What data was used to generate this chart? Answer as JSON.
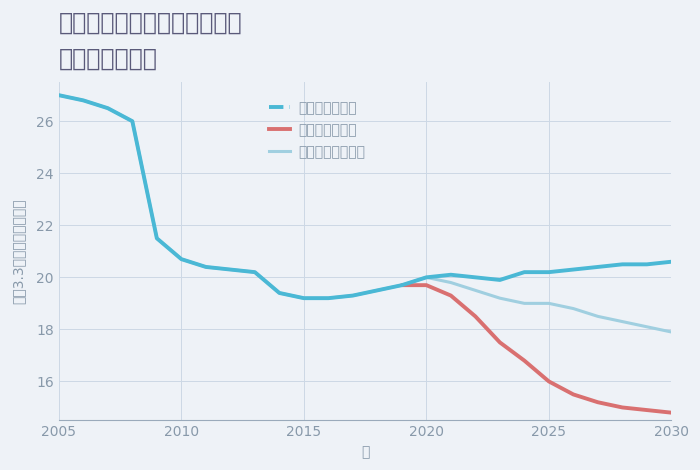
{
  "title": "奈良県奈良市月ヶ瀬桃香野の\n土地の価格推移",
  "xlabel": "年",
  "ylabel": "坪（3.3㎡）単価（万円）",
  "background_color": "#eef2f7",
  "plot_background": "#eef2f7",
  "legend": [
    "グッドシナリオ",
    "バッドシナリオ",
    "ノーマルシナリオ"
  ],
  "colors": [
    "#4ab8d5",
    "#d97070",
    "#a0cfe0"
  ],
  "linewidths": [
    2.8,
    2.8,
    2.2
  ],
  "ylim": [
    14.5,
    27.5
  ],
  "xlim": [
    2005,
    2030
  ],
  "yticks": [
    16,
    18,
    20,
    22,
    24,
    26
  ],
  "xticks": [
    2005,
    2010,
    2015,
    2020,
    2025,
    2030
  ],
  "good_x": [
    2005,
    2006,
    2007,
    2008,
    2009,
    2010,
    2011,
    2012,
    2013,
    2014,
    2015,
    2016,
    2017,
    2018,
    2019,
    2020,
    2021,
    2022,
    2023,
    2024,
    2025,
    2026,
    2027,
    2028,
    2029,
    2030
  ],
  "good_y": [
    27.0,
    26.8,
    26.5,
    26.0,
    21.5,
    20.7,
    20.4,
    20.3,
    20.2,
    19.4,
    19.2,
    19.2,
    19.3,
    19.5,
    19.7,
    20.0,
    20.1,
    20.0,
    19.9,
    20.2,
    20.2,
    20.3,
    20.4,
    20.5,
    20.5,
    20.6
  ],
  "bad_x": [
    2019,
    2020,
    2021,
    2022,
    2023,
    2024,
    2025,
    2026,
    2027,
    2028,
    2029,
    2030
  ],
  "bad_y": [
    19.7,
    19.7,
    19.3,
    18.5,
    17.5,
    16.8,
    16.0,
    15.5,
    15.2,
    15.0,
    14.9,
    14.8
  ],
  "normal_x": [
    2005,
    2006,
    2007,
    2008,
    2009,
    2010,
    2011,
    2012,
    2013,
    2014,
    2015,
    2016,
    2017,
    2018,
    2019,
    2020,
    2021,
    2022,
    2023,
    2024,
    2025,
    2026,
    2027,
    2028,
    2029,
    2030
  ],
  "normal_y": [
    27.0,
    26.8,
    26.5,
    26.0,
    21.5,
    20.7,
    20.4,
    20.3,
    20.2,
    19.4,
    19.2,
    19.2,
    19.3,
    19.5,
    19.7,
    20.0,
    19.8,
    19.5,
    19.2,
    19.0,
    19.0,
    18.8,
    18.5,
    18.3,
    18.1,
    17.9
  ],
  "title_color": "#5a5a7a",
  "axis_color": "#9aaabb",
  "tick_color": "#8899aa",
  "grid_color": "#ccd8e5",
  "title_fontsize": 17,
  "label_fontsize": 10,
  "tick_fontsize": 10
}
